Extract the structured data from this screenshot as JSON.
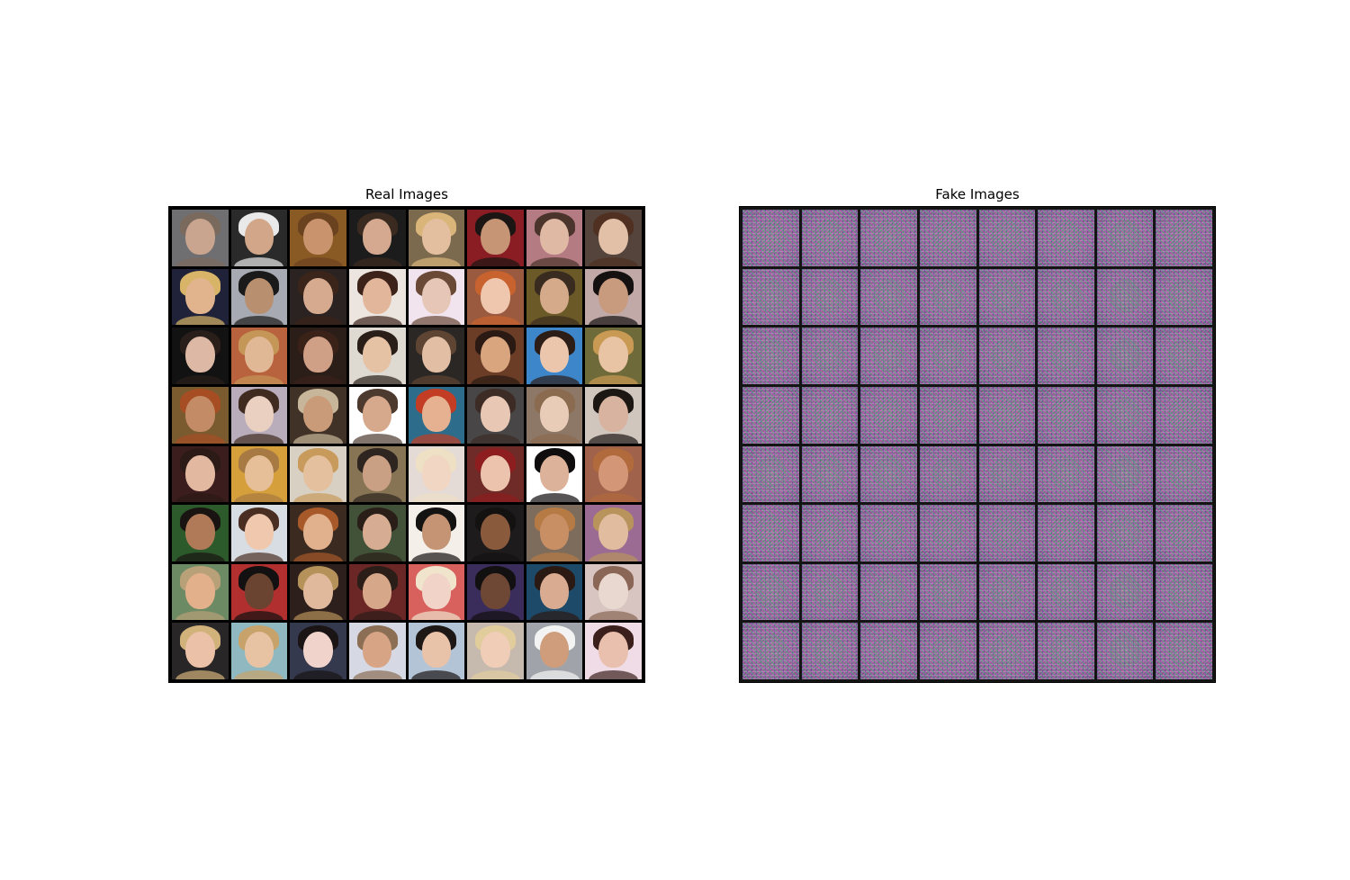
{
  "panels": {
    "real": {
      "title": "Real Images"
    },
    "fake": {
      "title": "Fake Images"
    }
  },
  "grid": {
    "rows": 8,
    "cols": 8
  },
  "colors": {
    "figure_background": "#ffffff",
    "real_grid_background": "#000000",
    "fake_grid_background": "#141414",
    "fake_noise_base": "#9a6c99"
  },
  "real_faces": [
    {
      "bg": "#6f6f72",
      "skin": "#c9a48f",
      "hair": "#7a6a5e"
    },
    {
      "bg": "#2b2a2a",
      "skin": "#d2a789",
      "hair": "#e9e9e9"
    },
    {
      "bg": "#8a5a25",
      "skin": "#c9936d",
      "hair": "#6b4220"
    },
    {
      "bg": "#1c1c1c",
      "skin": "#d4a98f",
      "hair": "#3b2a20"
    },
    {
      "bg": "#7c6a4e",
      "skin": "#e3bfa0",
      "hair": "#d9b57a"
    },
    {
      "bg": "#8a1d24",
      "skin": "#c59575",
      "hair": "#1b1514"
    },
    {
      "bg": "#b57b82",
      "skin": "#e0b9a5",
      "hair": "#4a342b"
    },
    {
      "bg": "#55443b",
      "skin": "#e2c0a8",
      "hair": "#4f3021"
    },
    {
      "bg": "#1f2238",
      "skin": "#e1b48e",
      "hair": "#d7b467"
    },
    {
      "bg": "#a7aab3",
      "skin": "#b8906f",
      "hair": "#1b1a1a"
    },
    {
      "bg": "#2a2321",
      "skin": "#d5aa8f",
      "hair": "#3b2419"
    },
    {
      "bg": "#ece5df",
      "skin": "#e2b69b",
      "hair": "#3d2219"
    },
    {
      "bg": "#f1e4ee",
      "skin": "#e6c7b7",
      "hair": "#6a4937"
    },
    {
      "bg": "#9a5a3f",
      "skin": "#efc6ae",
      "hair": "#c8622f"
    },
    {
      "bg": "#6b5a27",
      "skin": "#d4aa8a",
      "hair": "#3a2b20"
    },
    {
      "bg": "#c0a9a6",
      "skin": "#c89a7e",
      "hair": "#151111"
    },
    {
      "bg": "#121212",
      "skin": "#dcb8a5",
      "hair": "#2a1e1a"
    },
    {
      "bg": "#b8633d",
      "skin": "#e0b895",
      "hair": "#c49657"
    },
    {
      "bg": "#2b1d18",
      "skin": "#cf9f86",
      "hair": "#3a2219"
    },
    {
      "bg": "#dedad2",
      "skin": "#e6c2a5",
      "hair": "#2a1e18"
    },
    {
      "bg": "#2a2724",
      "skin": "#e1bea4",
      "hair": "#5e4433"
    },
    {
      "bg": "#6b3d26",
      "skin": "#d8a57f",
      "hair": "#2a1a13"
    },
    {
      "bg": "#3d86c9",
      "skin": "#ebc6ad",
      "hair": "#2c1d17"
    },
    {
      "bg": "#6f6a3a",
      "skin": "#e8c3a4",
      "hair": "#c99a53"
    },
    {
      "bg": "#7a5a2f",
      "skin": "#c48c66",
      "hair": "#a64d23"
    },
    {
      "bg": "#b9adbb",
      "skin": "#ead0c1",
      "hair": "#3f2b20"
    },
    {
      "bg": "#403226",
      "skin": "#c99b79",
      "hair": "#c8b69a"
    },
    {
      "bg": "#ffffff",
      "skin": "#d7a98c",
      "hair": "#4d3a2f"
    },
    {
      "bg": "#2d6c8a",
      "skin": "#e6b190",
      "hair": "#c33d24"
    },
    {
      "bg": "#484646",
      "skin": "#e8c8b5",
      "hair": "#3d2c26"
    },
    {
      "bg": "#8d7766",
      "skin": "#e8ccb8",
      "hair": "#8b6b50"
    },
    {
      "bg": "#d1c6be",
      "skin": "#d8b4a0",
      "hair": "#1d1714"
    },
    {
      "bg": "#3b1d1e",
      "skin": "#e2b8a0",
      "hair": "#2b1a16"
    },
    {
      "bg": "#d59f3b",
      "skin": "#e6be98",
      "hair": "#a67a42"
    },
    {
      "bg": "#d9d0c4",
      "skin": "#e4c09e",
      "hair": "#c89a5b"
    },
    {
      "bg": "#867454",
      "skin": "#c9a083",
      "hair": "#2e2520"
    },
    {
      "bg": "#e4dbd6",
      "skin": "#f0d6c3",
      "hair": "#ede0c4"
    },
    {
      "bg": "#6f2b27",
      "skin": "#ecc4ad",
      "hair": "#8e1d1f"
    },
    {
      "bg": "#ffffff",
      "skin": "#dcb39a",
      "hair": "#0f0d0d"
    },
    {
      "bg": "#a0624b",
      "skin": "#d39676",
      "hair": "#b06a3c"
    },
    {
      "bg": "#2d5a2a",
      "skin": "#b07a58",
      "hair": "#191412"
    },
    {
      "bg": "#d7dde3",
      "skin": "#f0c8ad",
      "hair": "#4a2e22"
    },
    {
      "bg": "#3a2a1f",
      "skin": "#e1b08d",
      "hair": "#a8592a"
    },
    {
      "bg": "#425238",
      "skin": "#d6ad93",
      "hair": "#2a1f18"
    },
    {
      "bg": "#f4efe8",
      "skin": "#c59474",
      "hair": "#151212"
    },
    {
      "bg": "#1d1b1b",
      "skin": "#8a5a3d",
      "hair": "#141111"
    },
    {
      "bg": "#7d6c5c",
      "skin": "#c98f64",
      "hair": "#b67a45"
    },
    {
      "bg": "#9c6b93",
      "skin": "#e1bc9f",
      "hair": "#b8935c"
    },
    {
      "bg": "#6c8a63",
      "skin": "#e2b08a",
      "hair": "#b8a078"
    },
    {
      "bg": "#b1302f",
      "skin": "#6a4430",
      "hair": "#121010"
    },
    {
      "bg": "#2d1f1c",
      "skin": "#e0b89c",
      "hair": "#b59259"
    },
    {
      "bg": "#6b2626",
      "skin": "#d7a789",
      "hair": "#2b1d18"
    },
    {
      "bg": "#d8605d",
      "skin": "#f1d3c7",
      "hair": "#f0e4cd"
    },
    {
      "bg": "#3a2d5b",
      "skin": "#6e4835",
      "hair": "#121010"
    },
    {
      "bg": "#1d4a69",
      "skin": "#d9ab90",
      "hair": "#2b1a14"
    },
    {
      "bg": "#d8c5c1",
      "skin": "#e9d8d0",
      "hair": "#8a6656"
    },
    {
      "bg": "#282626",
      "skin": "#ebc1a8",
      "hair": "#d1b27a"
    },
    {
      "bg": "#8fb8c1",
      "skin": "#e8c3a3",
      "hair": "#c7a26a"
    },
    {
      "bg": "#35394e",
      "skin": "#f0d4cc",
      "hair": "#1a1415"
    },
    {
      "bg": "#d6d9e3",
      "skin": "#d7a485",
      "hair": "#8c6e55"
    },
    {
      "bg": "#b3c4d6",
      "skin": "#e8c3aa",
      "hair": "#1d1716"
    },
    {
      "bg": "#c6b9ad",
      "skin": "#f0cdb6",
      "hair": "#e1cc9c"
    },
    {
      "bg": "#a0a4aa",
      "skin": "#cf9d7b",
      "hair": "#f3f3f3"
    },
    {
      "bg": "#f0dce6",
      "skin": "#e8c0ad",
      "hair": "#3a1f1c"
    }
  ]
}
